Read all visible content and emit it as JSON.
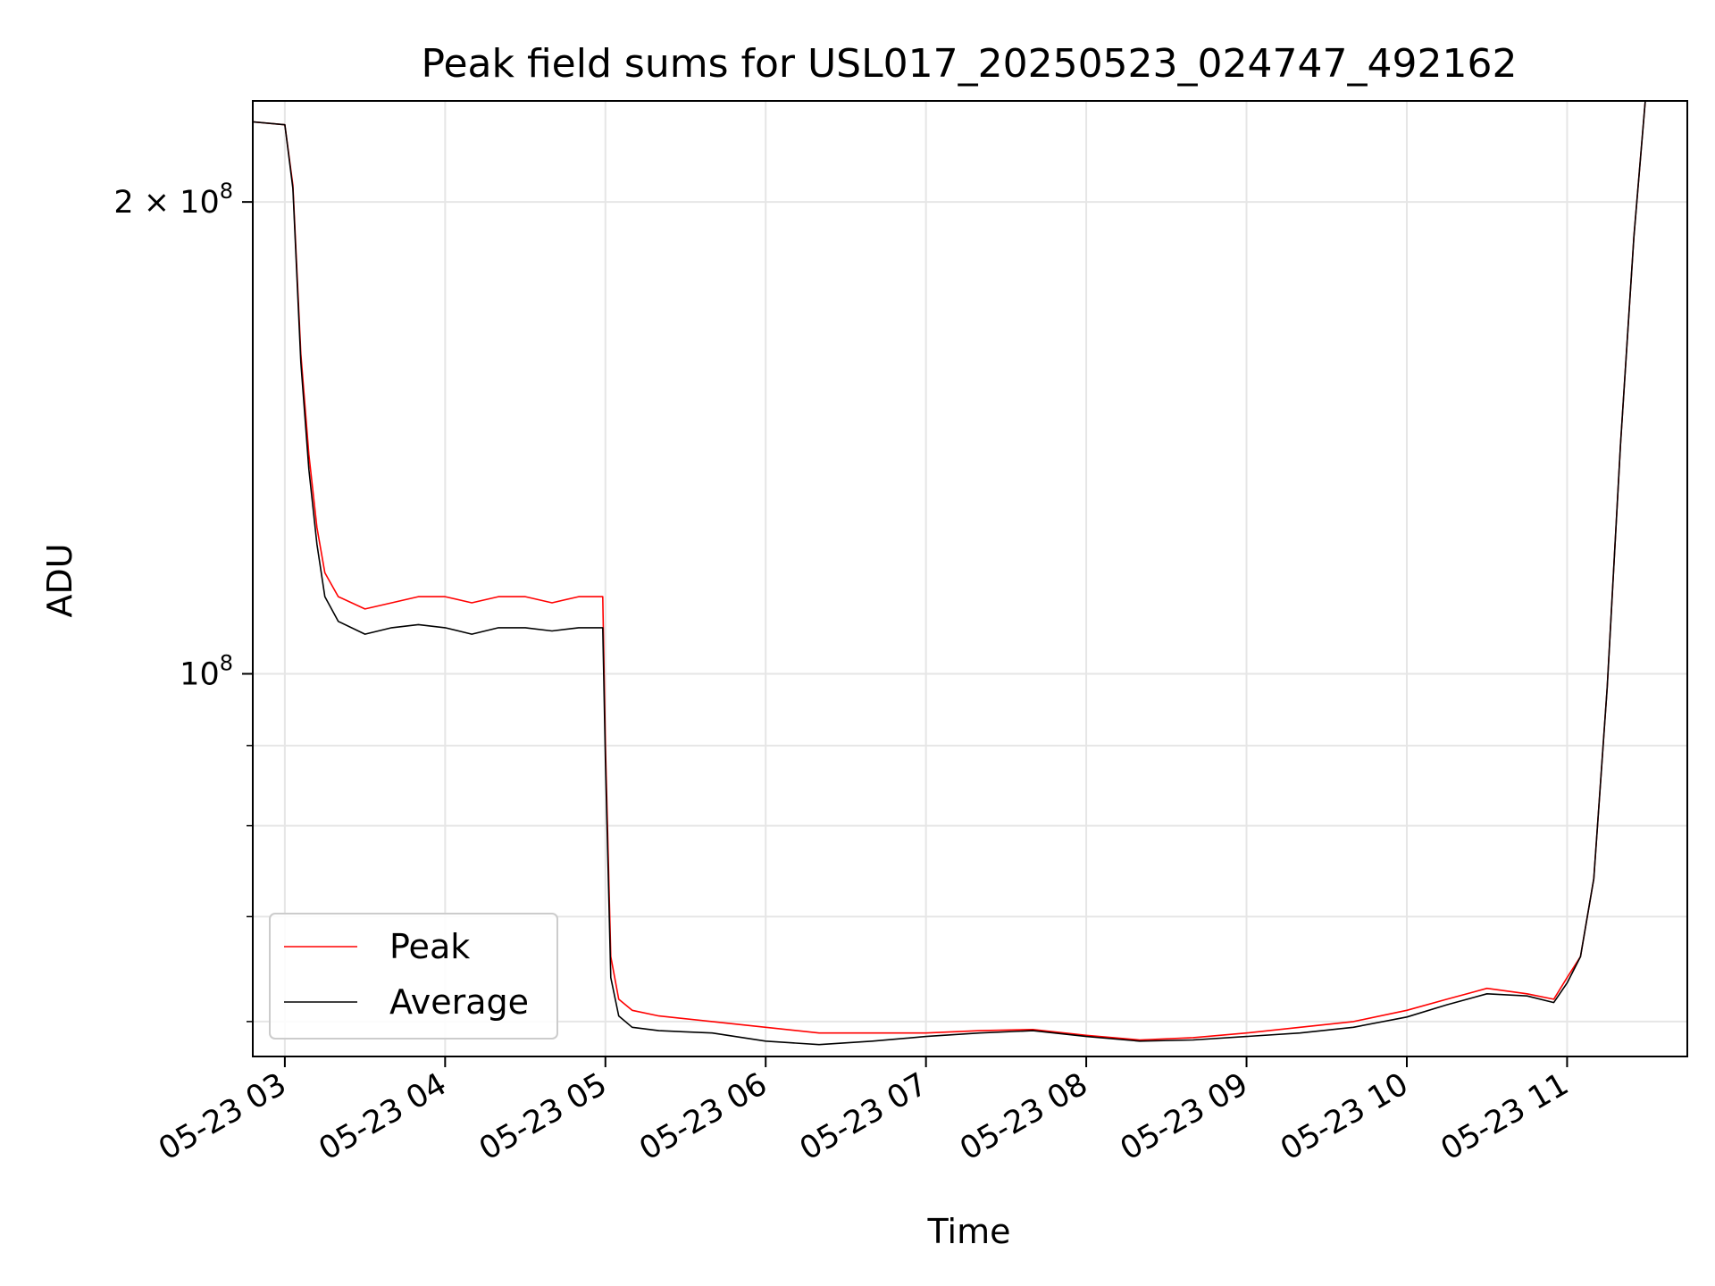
{
  "chart_data": {
    "type": "line",
    "title": "Peak field sums for USL017_20250523_024747_492162",
    "xlabel": "Time",
    "ylabel": "ADU",
    "yscale": "log",
    "xlim": [
      "2025-05-23 02:48",
      "2025-05-23 11:45"
    ],
    "ylim": [
      57000000,
      232000000
    ],
    "grid": true,
    "legend_placement": "lower-left",
    "x_ticks": [
      "05-23 03",
      "05-23 04",
      "05-23 05",
      "05-23 06",
      "05-23 07",
      "05-23 08",
      "05-23 09",
      "05-23 10",
      "05-23 11"
    ],
    "y_ticks": [
      {
        "value": 100000000,
        "label_base": "10",
        "label_exp": "8"
      },
      {
        "value": 200000000,
        "label_base": "2 × 10",
        "label_exp": "8"
      }
    ],
    "y_minor_ticks": [
      60000000,
      70000000,
      80000000,
      90000000
    ],
    "series": [
      {
        "name": "Peak",
        "color": "#ff0000",
        "x": [
          "2025-05-23 02:48",
          "2025-05-23 03:00",
          "2025-05-23 03:03",
          "2025-05-23 03:06",
          "2025-05-23 03:09",
          "2025-05-23 03:12",
          "2025-05-23 03:15",
          "2025-05-23 03:20",
          "2025-05-23 03:30",
          "2025-05-23 03:40",
          "2025-05-23 03:50",
          "2025-05-23 04:00",
          "2025-05-23 04:10",
          "2025-05-23 04:20",
          "2025-05-23 04:30",
          "2025-05-23 04:40",
          "2025-05-23 04:50",
          "2025-05-23 04:59",
          "2025-05-23 05:00",
          "2025-05-23 05:02",
          "2025-05-23 05:05",
          "2025-05-23 05:10",
          "2025-05-23 05:20",
          "2025-05-23 05:40",
          "2025-05-23 06:00",
          "2025-05-23 06:20",
          "2025-05-23 06:40",
          "2025-05-23 07:00",
          "2025-05-23 07:20",
          "2025-05-23 07:40",
          "2025-05-23 08:00",
          "2025-05-23 08:20",
          "2025-05-23 08:40",
          "2025-05-23 09:00",
          "2025-05-23 09:20",
          "2025-05-23 09:40",
          "2025-05-23 10:00",
          "2025-05-23 10:15",
          "2025-05-23 10:30",
          "2025-05-23 10:45",
          "2025-05-23 10:55",
          "2025-05-23 11:00",
          "2025-05-23 11:05",
          "2025-05-23 11:10",
          "2025-05-23 11:15",
          "2025-05-23 11:20",
          "2025-05-23 11:25",
          "2025-05-23 11:30"
        ],
        "values": [
          225000000,
          224000000,
          205000000,
          160000000,
          138000000,
          124000000,
          116000000,
          112000000,
          110000000,
          111000000,
          112000000,
          112000000,
          111000000,
          112000000,
          112000000,
          111000000,
          112000000,
          112000000,
          90000000,
          66000000,
          62000000,
          61000000,
          60500000,
          60000000,
          59500000,
          59000000,
          59000000,
          59000000,
          59200000,
          59300000,
          58800000,
          58400000,
          58600000,
          59000000,
          59500000,
          60000000,
          61000000,
          62000000,
          63000000,
          62500000,
          62000000,
          64000000,
          66000000,
          74000000,
          98000000,
          140000000,
          190000000,
          240000000
        ]
      },
      {
        "name": "Average",
        "color": "#000000",
        "x": [
          "2025-05-23 02:48",
          "2025-05-23 03:00",
          "2025-05-23 03:03",
          "2025-05-23 03:06",
          "2025-05-23 03:09",
          "2025-05-23 03:12",
          "2025-05-23 03:15",
          "2025-05-23 03:20",
          "2025-05-23 03:30",
          "2025-05-23 03:40",
          "2025-05-23 03:50",
          "2025-05-23 04:00",
          "2025-05-23 04:10",
          "2025-05-23 04:20",
          "2025-05-23 04:30",
          "2025-05-23 04:40",
          "2025-05-23 04:50",
          "2025-05-23 04:59",
          "2025-05-23 05:00",
          "2025-05-23 05:02",
          "2025-05-23 05:05",
          "2025-05-23 05:10",
          "2025-05-23 05:20",
          "2025-05-23 05:40",
          "2025-05-23 06:00",
          "2025-05-23 06:20",
          "2025-05-23 06:40",
          "2025-05-23 07:00",
          "2025-05-23 07:20",
          "2025-05-23 07:40",
          "2025-05-23 08:00",
          "2025-05-23 08:20",
          "2025-05-23 08:40",
          "2025-05-23 09:00",
          "2025-05-23 09:20",
          "2025-05-23 09:40",
          "2025-05-23 10:00",
          "2025-05-23 10:15",
          "2025-05-23 10:30",
          "2025-05-23 10:45",
          "2025-05-23 10:55",
          "2025-05-23 11:00",
          "2025-05-23 11:05",
          "2025-05-23 11:10",
          "2025-05-23 11:15",
          "2025-05-23 11:20",
          "2025-05-23 11:25",
          "2025-05-23 11:30"
        ],
        "values": [
          225000000,
          224000000,
          204000000,
          158000000,
          135000000,
          121000000,
          112000000,
          108000000,
          106000000,
          107000000,
          107500000,
          107000000,
          106000000,
          107000000,
          107000000,
          106500000,
          107000000,
          107000000,
          88000000,
          64000000,
          60500000,
          59500000,
          59200000,
          59000000,
          58300000,
          58000000,
          58300000,
          58700000,
          59000000,
          59200000,
          58700000,
          58300000,
          58400000,
          58700000,
          59000000,
          59500000,
          60400000,
          61500000,
          62500000,
          62300000,
          61700000,
          63500000,
          66000000,
          74000000,
          98000000,
          140000000,
          190000000,
          240000000
        ]
      }
    ]
  }
}
